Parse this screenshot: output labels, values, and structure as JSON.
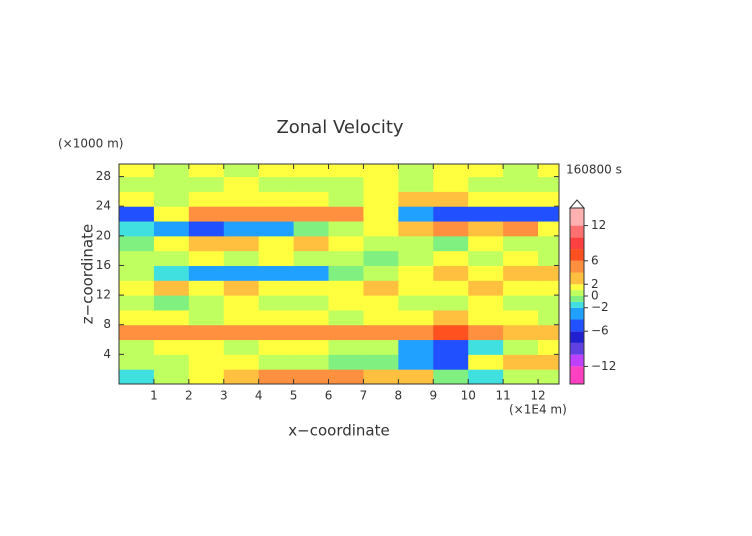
{
  "chart_data": {
    "type": "contour",
    "title": "Zonal Velocity",
    "y_unit": "(×1000 m)",
    "x_unit": "(×1E4 m)",
    "time_label": "160800 s",
    "xlabel": "x−coordinate",
    "ylabel": "z−coordinate",
    "xlim": [
      0,
      12.6
    ],
    "ylim": [
      0,
      29.7
    ],
    "xticks": [
      1,
      2,
      3,
      4,
      5,
      6,
      7,
      8,
      9,
      10,
      11,
      12
    ],
    "yticks": [
      4,
      8,
      12,
      16,
      20,
      24,
      28
    ],
    "x": [
      0.5,
      1.5,
      2.5,
      3.5,
      4.5,
      5.5,
      6.5,
      7.5,
      8.5,
      9.5,
      10.5,
      11.5,
      12.5
    ],
    "z": [
      1,
      3,
      5,
      7,
      9,
      11,
      13,
      15,
      17,
      19,
      21,
      23,
      25,
      27,
      29
    ],
    "values": [
      [
        -1.5,
        0.5,
        1.5,
        2.5,
        4.5,
        4.5,
        4.5,
        3,
        2.5,
        -1,
        -2,
        0.5,
        0.5
      ],
      [
        0,
        0.5,
        1.5,
        1.5,
        0.5,
        0.5,
        -0.5,
        -1,
        -3,
        -5,
        1.5,
        3,
        2
      ],
      [
        0.5,
        1.5,
        1.5,
        0.5,
        1.5,
        1.5,
        0.5,
        0.5,
        -4,
        -5,
        -1.5,
        0.5,
        1.5
      ],
      [
        4.5,
        4.5,
        4.5,
        4.5,
        4.5,
        4.5,
        4.5,
        4.5,
        4.5,
        6.5,
        4.5,
        3,
        2.5
      ],
      [
        1.5,
        1.5,
        0.5,
        1.5,
        1.5,
        1.5,
        0.5,
        1.5,
        1.5,
        3,
        1.5,
        1.5,
        0.5
      ],
      [
        0.5,
        -0.5,
        0.5,
        1.5,
        0.5,
        0.5,
        1.5,
        1.5,
        0.5,
        0.5,
        1.5,
        0.5,
        0.5
      ],
      [
        1.5,
        3,
        1.5,
        3,
        1.5,
        1.5,
        1.5,
        3,
        1.5,
        1.5,
        3,
        1.5,
        1.5
      ],
      [
        0.5,
        -1.5,
        -2.5,
        -3,
        -3,
        -2.5,
        -1,
        0.5,
        1.5,
        3,
        1.5,
        3,
        3
      ],
      [
        0.5,
        0.5,
        1.5,
        0.5,
        1.5,
        0.5,
        0.5,
        -1,
        0.5,
        1.5,
        0.5,
        1.5,
        0.5
      ],
      [
        -0.5,
        1.5,
        3,
        3,
        1.5,
        3,
        1.5,
        0.5,
        0.5,
        -1,
        1.5,
        0.5,
        0.5
      ],
      [
        -1.5,
        -4,
        -5,
        -4,
        -2.5,
        -0.5,
        0.5,
        1.5,
        3,
        4.5,
        3,
        4.5,
        1.5
      ],
      [
        -4.5,
        1.5,
        4.5,
        5,
        5,
        5,
        4.5,
        1.5,
        -2.5,
        -5,
        -4.5,
        -5,
        -4.5
      ],
      [
        1.5,
        0.5,
        1.5,
        1.5,
        1.5,
        1.5,
        0.5,
        1.5,
        3,
        3,
        1.5,
        1.5,
        1.5
      ],
      [
        0.5,
        0.5,
        0.5,
        1.5,
        0.5,
        0.5,
        0.5,
        1.5,
        0.5,
        1.5,
        0.5,
        0.5,
        0.5
      ],
      [
        1.5,
        0.5,
        1.5,
        0.5,
        1.5,
        1.5,
        1.5,
        1.5,
        0.5,
        1.5,
        1.5,
        0.5,
        1.5
      ]
    ],
    "levels": [
      -15,
      -12,
      -10,
      -8,
      -6,
      -4,
      -2,
      -1,
      0,
      1,
      2,
      4,
      6,
      8,
      10,
      12,
      15
    ],
    "colors": [
      "#ff40c0",
      "#c040ff",
      "#6040e0",
      "#2020d0",
      "#2050ff",
      "#20a0ff",
      "#40e0e0",
      "#80f080",
      "#c0ff60",
      "#ffff40",
      "#ffc040",
      "#ff9040",
      "#ff5020",
      "#ff4040",
      "#ff7070",
      "#ffb0b0"
    ],
    "colorbar_ticks": [
      {
        "value": -12,
        "label": "−12"
      },
      {
        "value": -6,
        "label": "−6"
      },
      {
        "value": -2,
        "label": "−2"
      },
      0,
      2,
      6,
      12
    ]
  }
}
